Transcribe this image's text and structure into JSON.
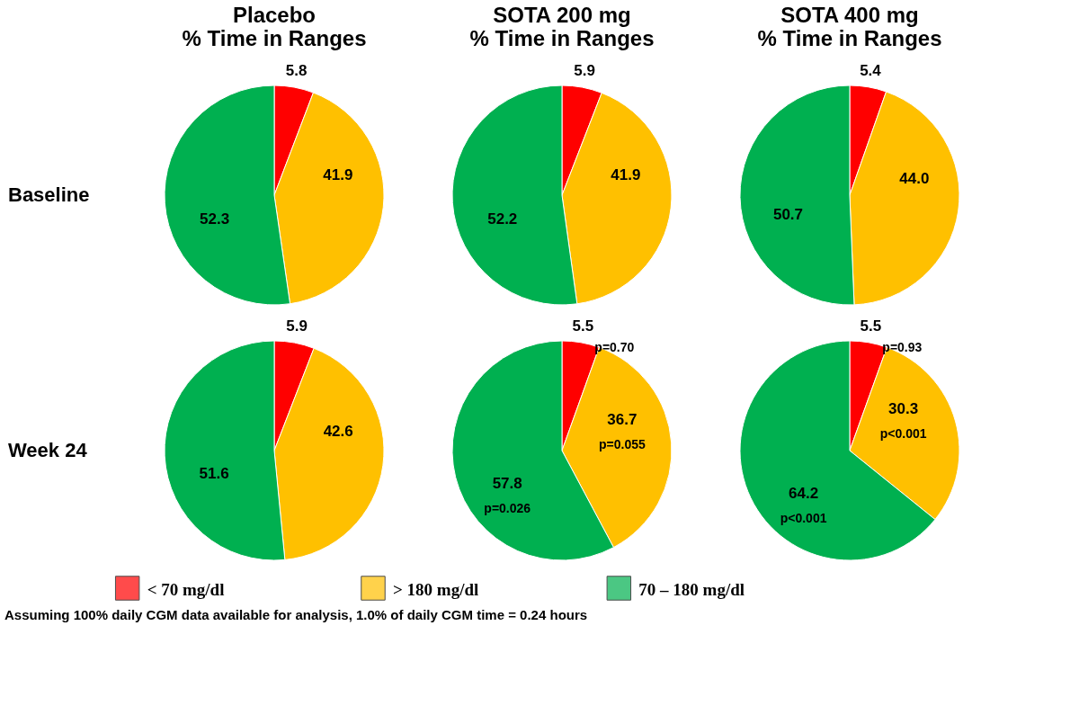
{
  "chart_data": [
    {
      "type": "pie",
      "title": "Placebo\n% Time in Ranges",
      "ylabel": "Baseline",
      "categories": [
        "< 70 mg/dl",
        "> 180 mg/dl",
        "70 – 180  mg/dl"
      ],
      "values": [
        5.8,
        41.9,
        52.3
      ],
      "colors": [
        "#ff0000",
        "#ffc000",
        "#00b050"
      ],
      "data_labels": true,
      "legend": "bottom"
    },
    {
      "type": "pie",
      "title": "SOTA 200 mg\n% Time in Ranges",
      "categories": [
        null,
        null,
        null
      ],
      "values": [
        5.9,
        41.9,
        52.2
      ],
      "colors": [
        "#ff0000",
        "#ffc000",
        "#00b050"
      ],
      "data_labels": true
    },
    {
      "type": "pie",
      "title": "SOTA 400 mg\n% Time in Ranges",
      "categories": [
        null,
        null,
        null
      ],
      "values": [
        5.4,
        44.0,
        50.7
      ],
      "value_labels": [
        "5.4",
        "44.0",
        "50.7"
      ],
      "colors": [
        "#ff0000",
        "#ffc000",
        "#00b050"
      ],
      "data_labels": true
    },
    {
      "type": "pie",
      "ylabel": "Week 24",
      "categories": [
        null,
        null,
        null
      ],
      "values": [
        5.9,
        42.6,
        51.6
      ],
      "colors": [
        "#ff0000",
        "#ffc000",
        "#00b050"
      ],
      "data_labels": true,
      "annotations": [
        "Assuming 100% daily CGM data available for analysis, 1.0% of daily CGM time = 0.24 hours"
      ]
    },
    {
      "type": "pie",
      "categories": [
        null,
        null,
        null
      ],
      "values": [
        5.5,
        36.7,
        57.8
      ],
      "colors": [
        "#ff0000",
        "#ffc000",
        "#00b050"
      ],
      "data_labels": true,
      "annotations": [
        {
          "text": "p=0.70"
        },
        {
          "text": "p=0.055"
        },
        {
          "text": "p=0.026"
        }
      ]
    },
    {
      "type": "pie",
      "categories": [
        null,
        null,
        null
      ],
      "values": [
        5.5,
        30.3,
        64.2
      ],
      "colors": [
        "#ff0000",
        "#ffc000",
        "#00b050"
      ],
      "data_labels": true,
      "annotations": [
        {
          "text": "p=0.93"
        },
        {
          "text": "p<0.001"
        },
        {
          "text": "p<0.001"
        }
      ]
    }
  ]
}
